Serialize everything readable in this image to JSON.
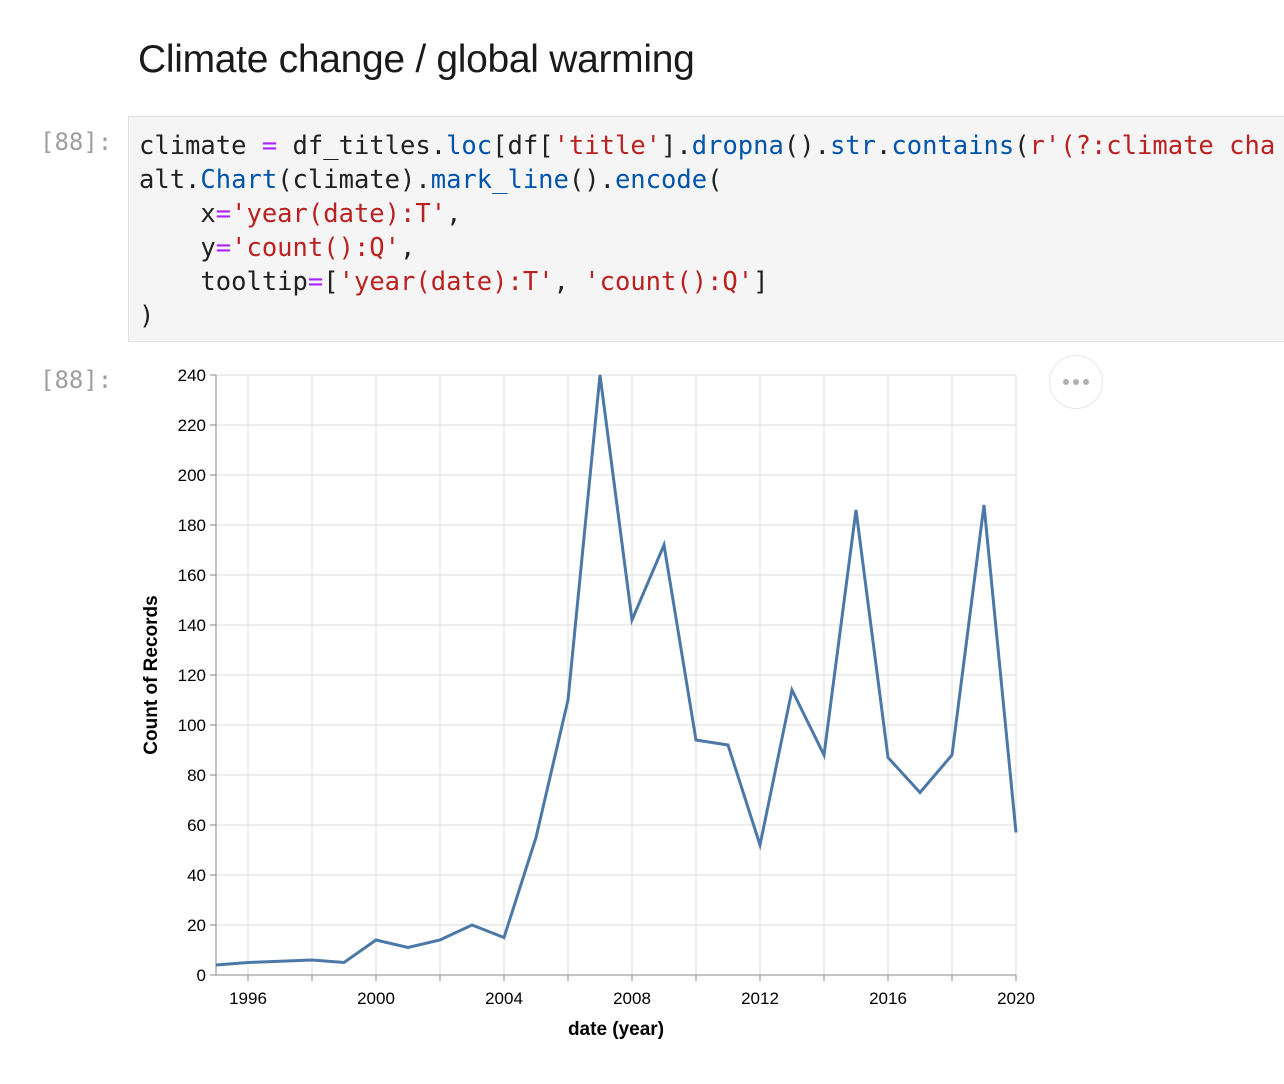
{
  "heading": "Climate change / global warming",
  "cells": {
    "input_prompt": "[88]:",
    "output_prompt": "[88]:"
  },
  "code_lines": [
    [
      {
        "t": "climate ",
        "c": "plain"
      },
      {
        "t": "=",
        "c": "kw-op"
      },
      {
        "t": " df_titles.",
        "c": "plain"
      },
      {
        "t": "loc",
        "c": "attr"
      },
      {
        "t": "[df[",
        "c": "plain"
      },
      {
        "t": "'title'",
        "c": "str"
      },
      {
        "t": "].",
        "c": "plain"
      },
      {
        "t": "dropna",
        "c": "attr"
      },
      {
        "t": "().",
        "c": "plain"
      },
      {
        "t": "str",
        "c": "attr"
      },
      {
        "t": ".",
        "c": "plain"
      },
      {
        "t": "contains",
        "c": "attr"
      },
      {
        "t": "(",
        "c": "plain"
      },
      {
        "t": "r'(?:climate cha",
        "c": "str"
      }
    ],
    [
      {
        "t": "alt.",
        "c": "plain"
      },
      {
        "t": "Chart",
        "c": "cls"
      },
      {
        "t": "(climate).",
        "c": "plain"
      },
      {
        "t": "mark_line",
        "c": "attr"
      },
      {
        "t": "().",
        "c": "plain"
      },
      {
        "t": "encode",
        "c": "attr"
      },
      {
        "t": "(",
        "c": "plain"
      }
    ],
    [
      {
        "t": "    x",
        "c": "plain"
      },
      {
        "t": "=",
        "c": "kw-op"
      },
      {
        "t": "'year(date):T'",
        "c": "str"
      },
      {
        "t": ",",
        "c": "plain"
      }
    ],
    [
      {
        "t": "    y",
        "c": "plain"
      },
      {
        "t": "=",
        "c": "kw-op"
      },
      {
        "t": "'count():Q'",
        "c": "str"
      },
      {
        "t": ",",
        "c": "plain"
      }
    ],
    [
      {
        "t": "    tooltip",
        "c": "plain"
      },
      {
        "t": "=",
        "c": "kw-op"
      },
      {
        "t": "[",
        "c": "plain"
      },
      {
        "t": "'year(date):T'",
        "c": "str"
      },
      {
        "t": ", ",
        "c": "plain"
      },
      {
        "t": "'count():Q'",
        "c": "str"
      },
      {
        "t": "]",
        "c": "plain"
      }
    ],
    [
      {
        "t": ")",
        "c": "plain"
      }
    ]
  ],
  "actions_icon": "more-horizontal-icon",
  "chart_data": {
    "type": "line",
    "xlabel": "date (year)",
    "ylabel": "Count of Records",
    "x_tick_labels": [
      "1996",
      "2000",
      "2004",
      "2008",
      "2012",
      "2016",
      "2020"
    ],
    "y_tick_labels": [
      "0",
      "20",
      "40",
      "60",
      "80",
      "100",
      "120",
      "140",
      "160",
      "180",
      "200",
      "220",
      "240"
    ],
    "xlim": [
      1995,
      2020
    ],
    "ylim": [
      0,
      240
    ],
    "grid": true,
    "line_color": "#4c78a8",
    "x": [
      1995,
      1996,
      1997,
      1998,
      1999,
      2000,
      2001,
      2002,
      2003,
      2004,
      2005,
      2006,
      2007,
      2008,
      2009,
      2010,
      2011,
      2012,
      2013,
      2014,
      2015,
      2016,
      2017,
      2018,
      2019,
      2020
    ],
    "values": [
      4,
      5,
      5.5,
      6,
      5,
      14,
      11,
      14,
      20,
      15,
      55,
      110,
      240,
      142,
      172,
      94,
      92,
      52,
      114,
      88,
      186,
      87,
      73,
      88,
      188,
      57
    ]
  }
}
